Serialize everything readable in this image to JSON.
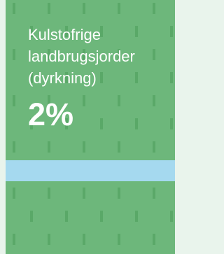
{
  "card": {
    "title_lines": [
      "Kulstofrige",
      "landbrugsjorder",
      "(dyrkning)"
    ],
    "value": "2%"
  }
}
